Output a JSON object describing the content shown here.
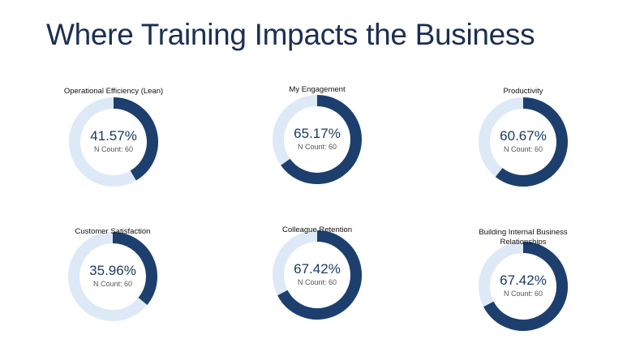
{
  "title": "Where Training Impacts the Business",
  "chart_data": [
    {
      "type": "donut",
      "title": "Operational Efficiency (Lean)",
      "subtitle": "N Count: 60",
      "values": [
        41.57
      ],
      "value_labels": [
        "41.57%"
      ],
      "ylim": [
        0,
        100
      ],
      "color": "#1c3f6e",
      "track_color": "#dde9f6"
    },
    {
      "type": "donut",
      "title": "My Engagement",
      "subtitle": "N Count: 60",
      "values": [
        65.17
      ],
      "value_labels": [
        "65.17%"
      ],
      "ylim": [
        0,
        100
      ],
      "color": "#1c3f6e",
      "track_color": "#dde9f6"
    },
    {
      "type": "donut",
      "title": "Productivity",
      "subtitle": "N Count: 60",
      "values": [
        60.67
      ],
      "value_labels": [
        "60.67%"
      ],
      "ylim": [
        0,
        100
      ],
      "color": "#1c3f6e",
      "track_color": "#dde9f6"
    },
    {
      "type": "donut",
      "title": "Customer Satisfaction",
      "subtitle": "N Count: 60",
      "values": [
        35.96
      ],
      "value_labels": [
        "35.96%"
      ],
      "ylim": [
        0,
        100
      ],
      "color": "#1c3f6e",
      "track_color": "#dde9f6"
    },
    {
      "type": "donut",
      "title": "Colleague Retention",
      "subtitle": "N Count: 60",
      "values": [
        67.42
      ],
      "value_labels": [
        "67.42%"
      ],
      "ylim": [
        0,
        100
      ],
      "color": "#1c3f6e",
      "track_color": "#dde9f6"
    },
    {
      "type": "donut",
      "title": "Building Internal Business Relationships",
      "subtitle": "N Count: 60",
      "values": [
        67.42
      ],
      "value_labels": [
        "67.42%"
      ],
      "ylim": [
        0,
        100
      ],
      "color": "#1c3f6e",
      "track_color": "#dde9f6"
    }
  ]
}
